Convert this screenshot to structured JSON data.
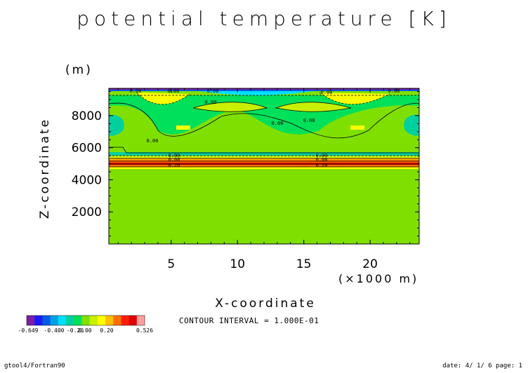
{
  "chart_data": {
    "type": "heatmap",
    "title": "potential temperature [K]",
    "xlabel": "X-coordinate",
    "ylabel": "Z-coordinate",
    "x_unit": "(×1000 m)",
    "y_unit": "(m)",
    "xlim": [
      0.3,
      23.7
    ],
    "ylim": [
      0,
      9700
    ],
    "x_ticks": [
      5,
      10,
      15,
      20
    ],
    "y_ticks": [
      2000,
      4000,
      6000,
      8000
    ],
    "x_tick_labels": [
      "5",
      "10",
      "15",
      "20"
    ],
    "y_tick_labels": [
      "2000",
      "4000",
      "6000",
      "8000"
    ],
    "contour_labels": [
      "0.00",
      "0.00",
      "0.00",
      "0.00",
      "0.00",
      "0.00",
      "0.00",
      "0.00",
      "0.00",
      "0.00",
      "0.00",
      "0.20",
      "0.00",
      "0.20",
      "0.00"
    ],
    "colorbar": {
      "colors": [
        "#7a1fa6",
        "#1a1aff",
        "#005ce6",
        "#00a0e6",
        "#00e0ff",
        "#00d0a0",
        "#00e05a",
        "#7fe000",
        "#c8f000",
        "#ffff00",
        "#ffc000",
        "#ff7000",
        "#ff2000",
        "#e00000",
        "#ffa0a0"
      ],
      "labels": [
        "-0.649",
        "-0.400",
        "-0.20",
        "0.00",
        "0.20",
        "0.526"
      ]
    },
    "contour_interval_text": "CONTOUR INTERVAL = 1.000E-01"
  },
  "footer": {
    "left": "gtool4/Fortran90",
    "right": "date: 4/ 1/ 6 page: 1"
  }
}
